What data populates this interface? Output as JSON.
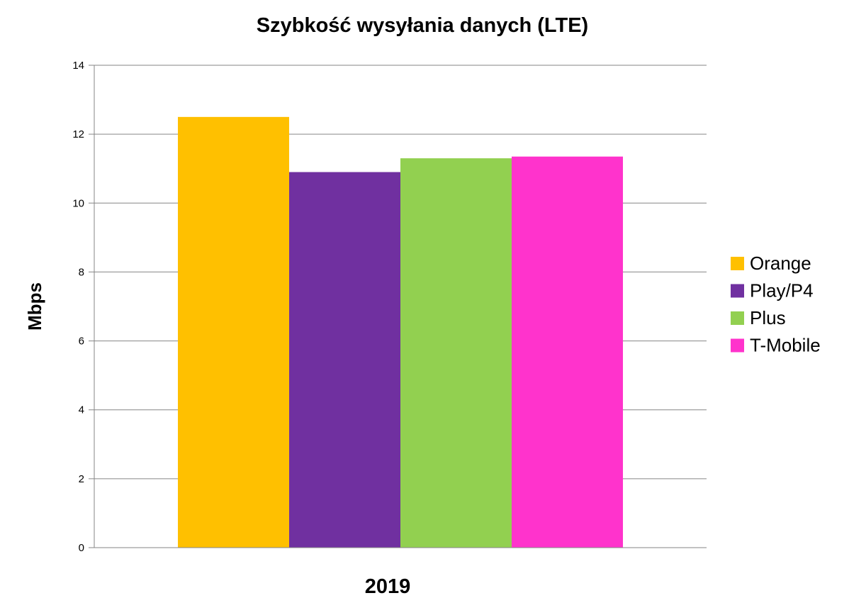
{
  "chart_data": {
    "type": "bar",
    "title": "Szybkość wysyłania danych (LTE)",
    "xlabel": "2019",
    "ylabel": "Mbps",
    "categories": [
      "2019"
    ],
    "ylim": [
      0,
      14
    ],
    "yticks": [
      "0",
      "2",
      "4",
      "6",
      "8",
      "10",
      "12",
      "14"
    ],
    "grid": true,
    "legend_position": "right",
    "series": [
      {
        "name": "Orange",
        "values": [
          12.5
        ],
        "color": "#FFC000"
      },
      {
        "name": "Play/P4",
        "values": [
          10.9
        ],
        "color": "#7030A0"
      },
      {
        "name": "Plus",
        "values": [
          11.3
        ],
        "color": "#92D050"
      },
      {
        "name": "T-Mobile",
        "values": [
          11.35
        ],
        "color": "#FF33CC"
      }
    ]
  }
}
